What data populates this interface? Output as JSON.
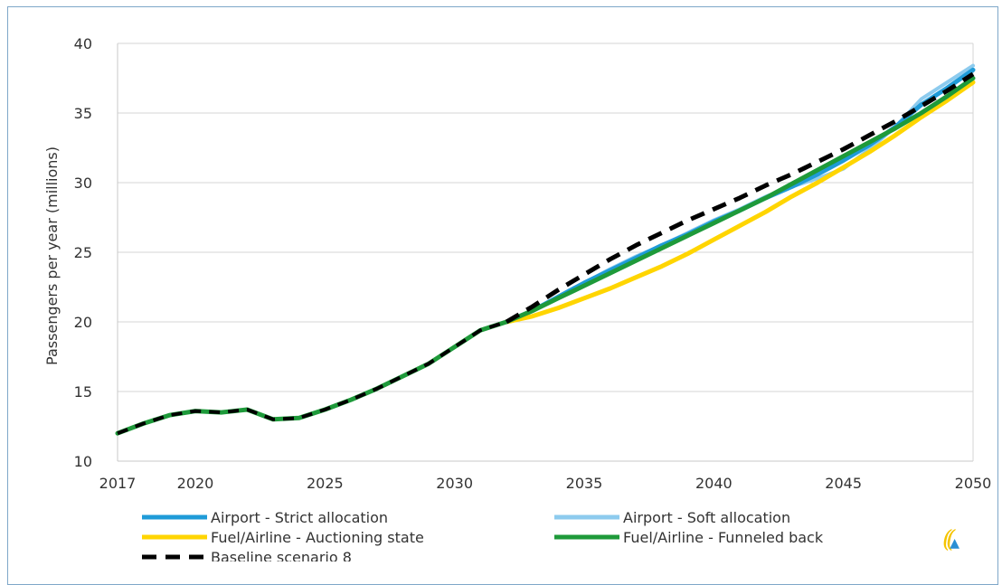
{
  "chart_data": {
    "type": "line",
    "title": "",
    "xlabel": "",
    "ylabel": "Passengers per year (millions)",
    "xlim": [
      2017,
      2050
    ],
    "ylim": [
      10,
      40
    ],
    "x_ticks": [
      2017,
      2020,
      2025,
      2030,
      2035,
      2040,
      2045,
      2050
    ],
    "y_ticks": [
      10,
      15,
      20,
      25,
      30,
      35,
      40
    ],
    "grid": "horizontal",
    "legend_position": "bottom",
    "base_years": [
      2017,
      2018,
      2019,
      2020,
      2021,
      2022,
      2023,
      2024,
      2025,
      2026,
      2027,
      2028,
      2029,
      2030,
      2031,
      2032
    ],
    "base_values": [
      12.0,
      12.7,
      13.3,
      13.6,
      13.5,
      13.7,
      13.0,
      13.1,
      13.7,
      14.4,
      15.2,
      16.1,
      17.0,
      18.2,
      19.4,
      20.0
    ],
    "x": [
      2032,
      2033,
      2034,
      2035,
      2036,
      2037,
      2038,
      2039,
      2040,
      2041,
      2042,
      2043,
      2044,
      2045,
      2046,
      2047,
      2048,
      2049,
      2050
    ],
    "series": [
      {
        "name": "Airport - Strict allocation",
        "color": "#1f9bd8",
        "style": "solid",
        "values": [
          20.0,
          20.8,
          21.8,
          22.8,
          23.7,
          24.6,
          25.5,
          26.3,
          27.2,
          28.0,
          28.9,
          29.7,
          30.6,
          31.6,
          32.7,
          34.0,
          35.6,
          36.8,
          38.1
        ]
      },
      {
        "name": "Airport - Soft allocation",
        "color": "#8dcbee",
        "style": "solid",
        "values": [
          20.0,
          20.8,
          21.8,
          22.8,
          23.8,
          24.7,
          25.5,
          26.4,
          27.3,
          28.1,
          29.0,
          29.7,
          30.3,
          31.0,
          32.4,
          34.0,
          36.0,
          37.2,
          38.4
        ]
      },
      {
        "name": "Fuel/Airline - Auctioning state",
        "color": "#ffd500",
        "style": "solid",
        "values": [
          20.0,
          20.4,
          21.0,
          21.7,
          22.4,
          23.2,
          24.0,
          24.9,
          25.9,
          26.9,
          27.9,
          29.0,
          30.0,
          31.1,
          32.2,
          33.4,
          34.7,
          35.9,
          37.2
        ]
      },
      {
        "name": "Fuel/Airline - Funneled back",
        "color": "#1e9a3a",
        "style": "solid",
        "values": [
          20.0,
          20.8,
          21.7,
          22.6,
          23.5,
          24.4,
          25.3,
          26.2,
          27.1,
          28.0,
          28.9,
          29.9,
          30.9,
          31.9,
          32.9,
          33.9,
          35.0,
          36.2,
          37.5
        ]
      },
      {
        "name": "Baseline scenario 8",
        "color": "#000000",
        "style": "dashed",
        "values": [
          20.0,
          21.1,
          22.3,
          23.4,
          24.5,
          25.5,
          26.4,
          27.3,
          28.1,
          28.9,
          29.8,
          30.6,
          31.5,
          32.4,
          33.4,
          34.4,
          35.5,
          36.6,
          37.8
        ]
      }
    ]
  },
  "logo_icon": "ce-delft-logo-icon"
}
